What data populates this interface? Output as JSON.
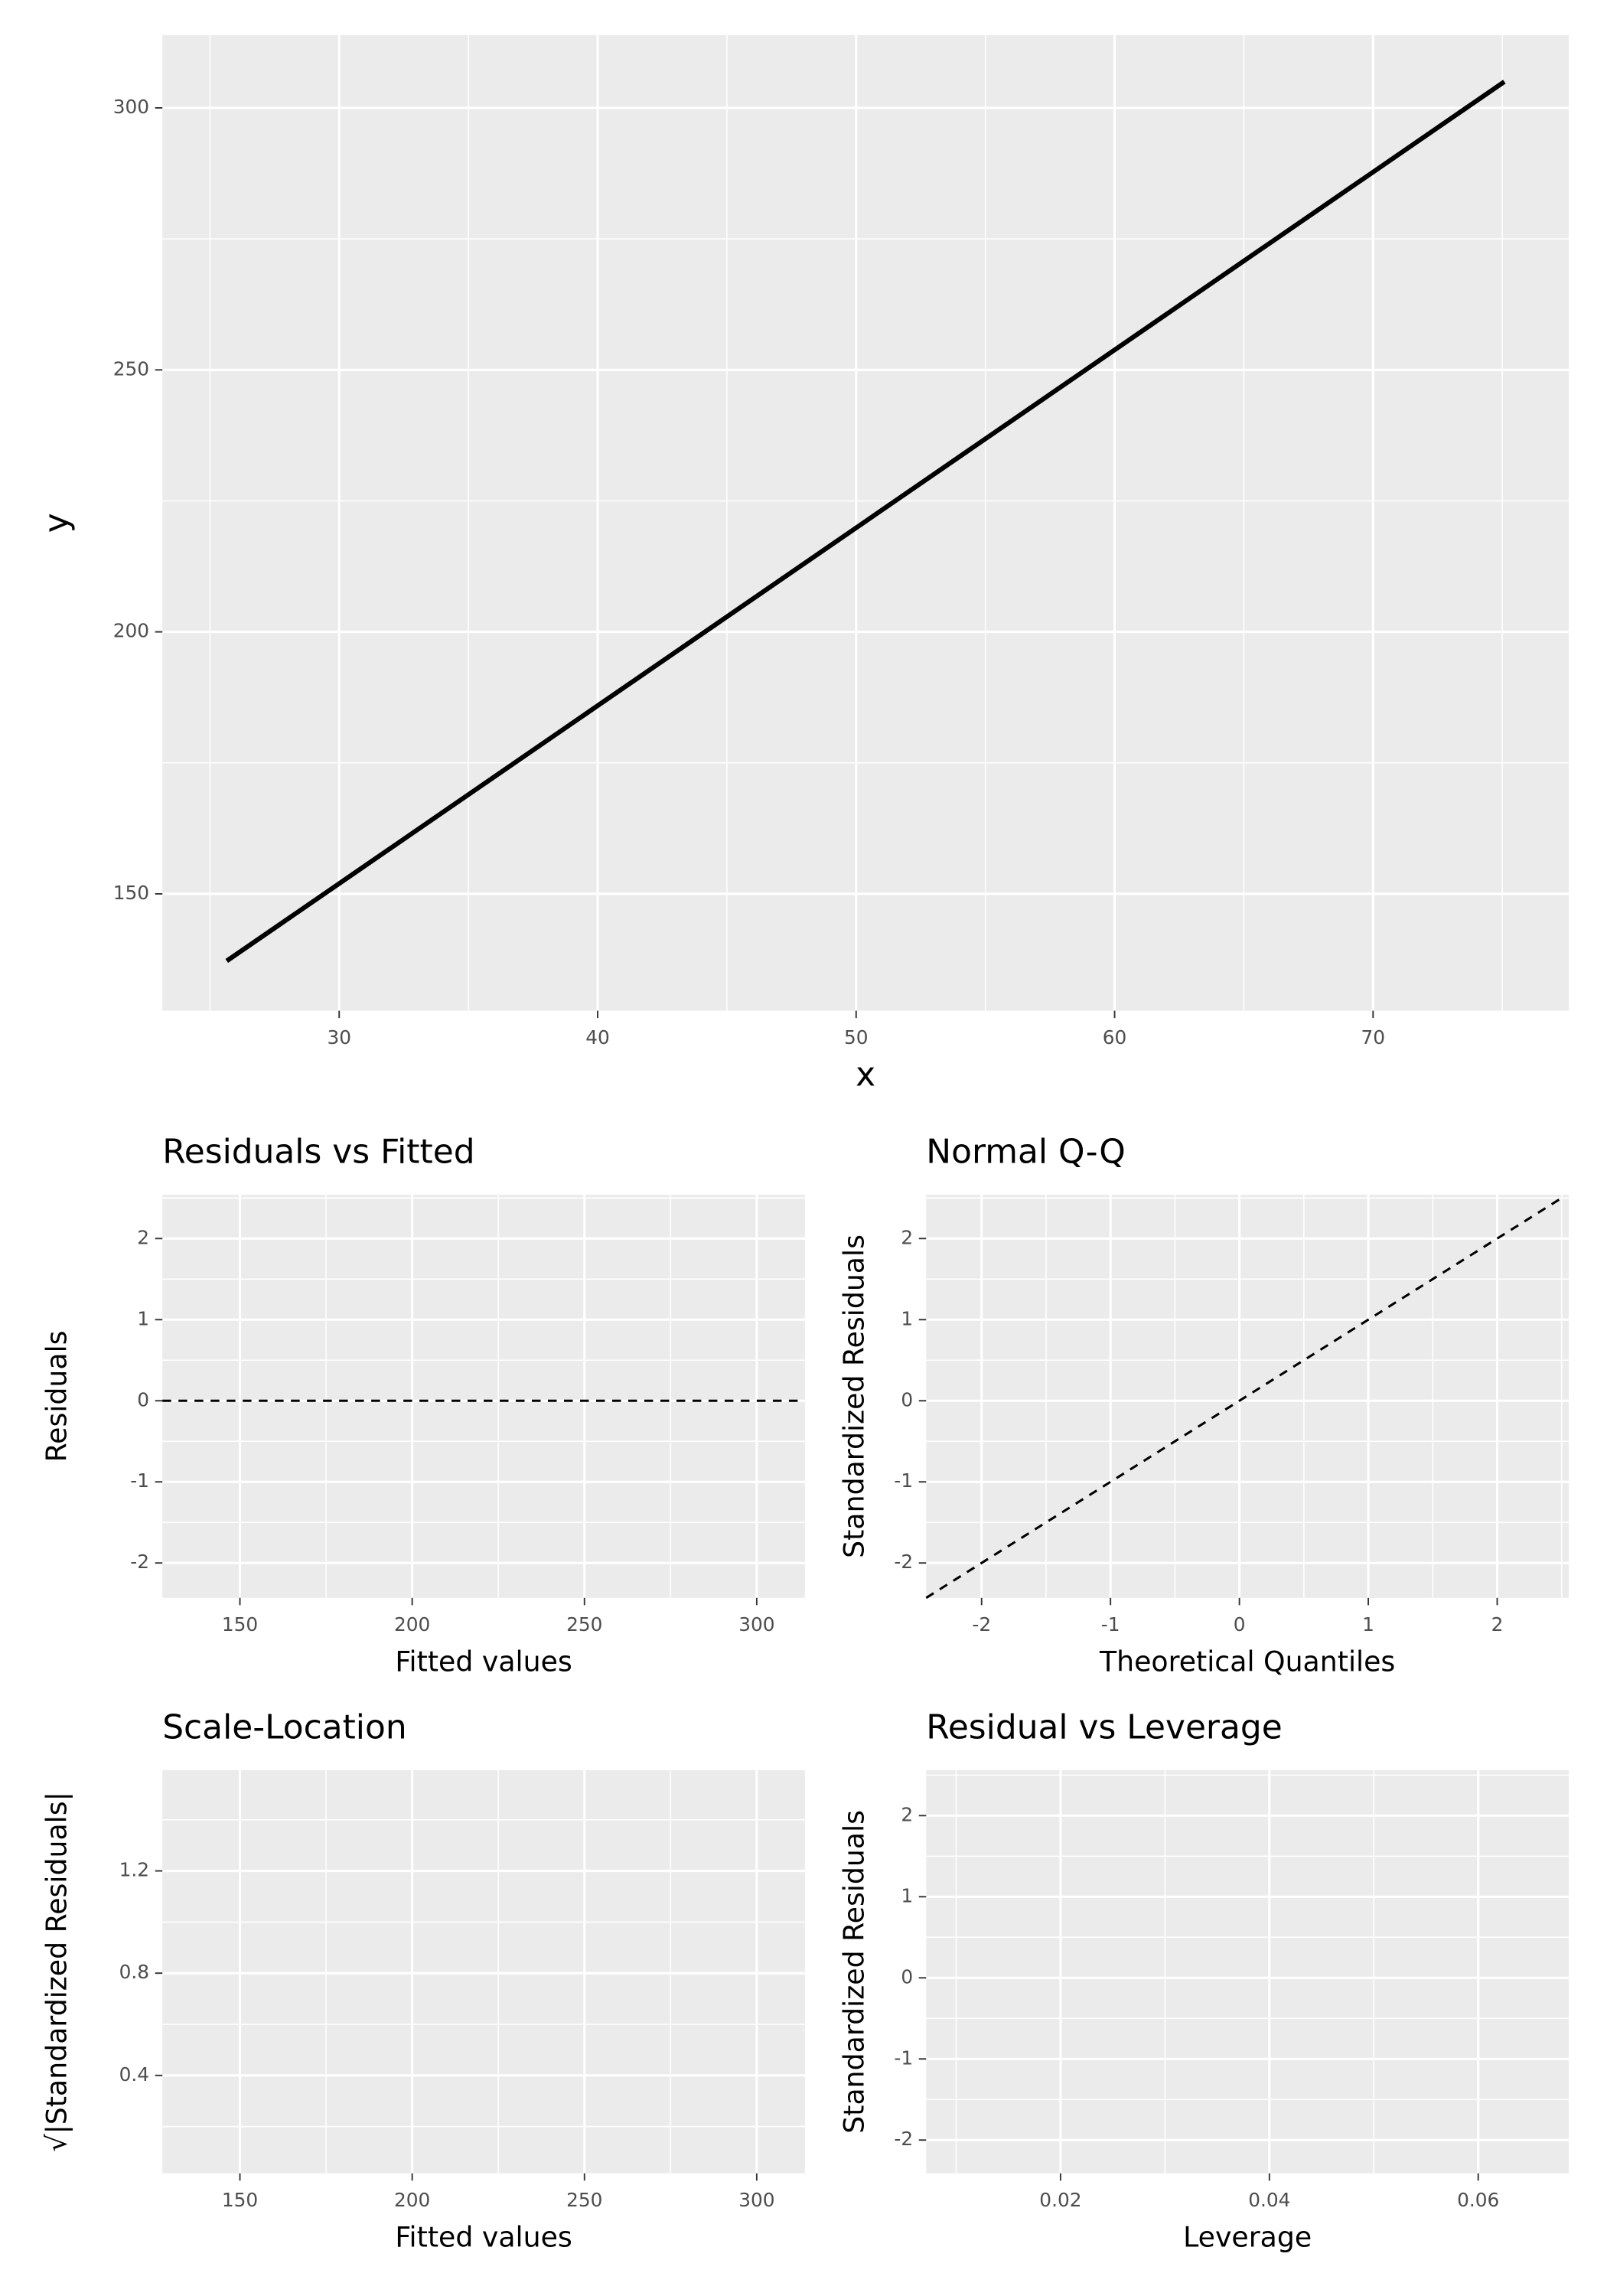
{
  "chart_data": [
    {
      "type": "line",
      "x_label": "x",
      "y_label": "y",
      "x": [
        25.65,
        75.08
      ],
      "values": [
        137.2,
        305
      ],
      "color": "#000000",
      "dash": false,
      "xlim": [
        23.16,
        77.57
      ],
      "ylim": [
        127.7,
        313.9
      ],
      "xticks": [
        30,
        40,
        50,
        60,
        70
      ],
      "yticks": [
        150,
        200,
        250,
        300
      ],
      "grid": true
    },
    {
      "type": "line",
      "title": "Residuals vs Fitted",
      "x_label": "Fitted values",
      "y_label": "Residuals",
      "x": [
        127.5,
        314
      ],
      "values": [
        0,
        0
      ],
      "color": "#000000",
      "dash": true,
      "xlim": [
        127.5,
        314
      ],
      "ylim": [
        -2.43,
        2.54
      ],
      "xticks": [
        150,
        200,
        250,
        300
      ],
      "yticks": [
        -2,
        -1,
        0,
        1,
        2
      ],
      "grid": true
    },
    {
      "type": "line",
      "title": "Normal Q-Q",
      "x_label": "Theoretical Quantiles",
      "y_label": "Standardized Residuals",
      "x": [
        -2.43,
        2.5
      ],
      "values": [
        -2.43,
        2.5
      ],
      "color": "#000000",
      "dash": true,
      "xlim": [
        -2.43,
        2.555
      ],
      "ylim": [
        -2.43,
        2.54
      ],
      "xticks": [
        -2,
        -1,
        0,
        1,
        2
      ],
      "yticks": [
        -2,
        -1,
        0,
        1,
        2
      ],
      "grid": true
    },
    {
      "type": "line",
      "title": "Scale-Location",
      "x_label": "Fitted values",
      "y_label": "√|Standardized Residuals|",
      "xlim": [
        127.5,
        314
      ],
      "ylim": [
        0.017,
        1.594
      ],
      "xticks": [
        150,
        200,
        250,
        300
      ],
      "yticks": [
        0.4,
        0.8,
        1.2
      ],
      "grid": true
    },
    {
      "type": "line",
      "title": "Residual vs Leverage",
      "x_label": "Leverage",
      "y_label": "Standardized Residuals",
      "xlim": [
        0.00713,
        0.06867
      ],
      "ylim": [
        -2.41,
        2.56
      ],
      "xticks": [
        0.02,
        0.04,
        0.06
      ],
      "yticks": [
        -2,
        -1,
        0,
        1,
        2
      ],
      "grid": true
    }
  ]
}
